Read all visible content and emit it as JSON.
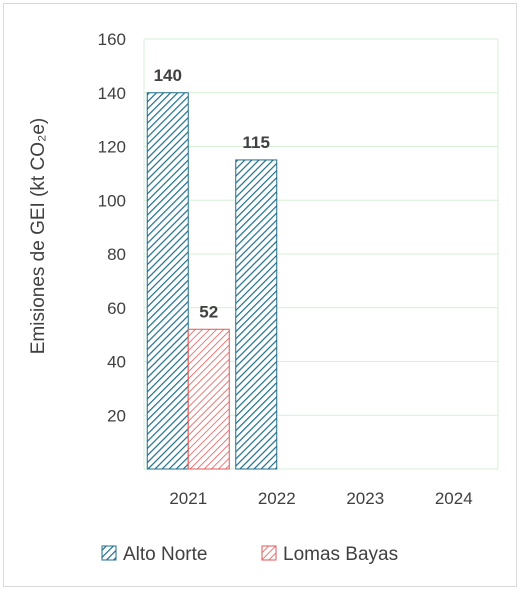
{
  "chart_data": {
    "type": "bar",
    "categories": [
      "2021",
      "2022",
      "2023",
      "2024"
    ],
    "series": [
      {
        "name": "Alto Norte",
        "values": [
          140,
          115,
          null,
          null
        ],
        "color": "#1f6e8a",
        "pattern": "diagonal-hatch"
      },
      {
        "name": "Lomas Bayas",
        "values": [
          52,
          null,
          null,
          null
        ],
        "color": "#e05a5a",
        "pattern": "diagonal-hatch"
      }
    ],
    "data_labels": [
      "140",
      "115",
      "52"
    ],
    "ylabel": "Emisiones de GEI (kt CO₂e)",
    "xlabel": "",
    "ylim": [
      0,
      160
    ],
    "yticks": [
      20,
      40,
      60,
      80,
      100,
      120,
      140,
      160
    ],
    "grid": true,
    "grid_color": "#d6efd6",
    "legend_position": "bottom"
  }
}
